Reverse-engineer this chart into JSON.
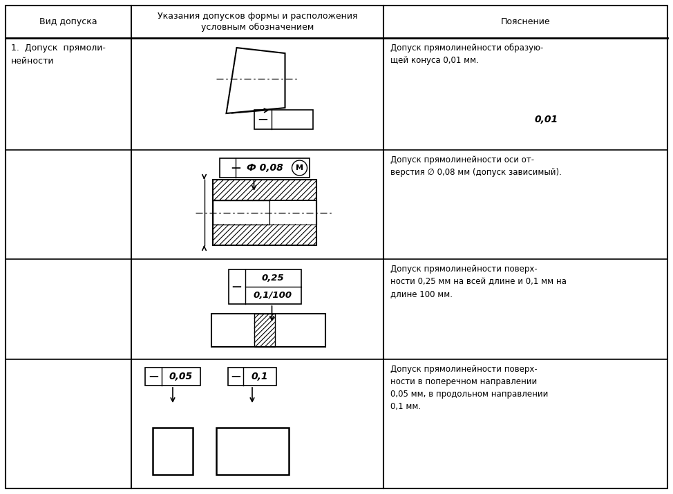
{
  "col1_header": "Вид допуска",
  "col2_header": "Указания допусков формы и расположения\nусловным обозначением",
  "col3_header": "Пояснение",
  "col1_text": "1.  Допуск  прямоли-\nнейности",
  "explanation1": "Допуск прямолинейности образую-\nщей конуса 0,01 мм.",
  "explanation2": "Допуск прямолинейности оси от-\nверстия ∅ 0,08 мм (допуск зависимый).",
  "explanation3": "Допуск прямолинейности поверх-\nности 0,25 мм на всей длине и 0,1 мм на\nдлине 100 мм.",
  "explanation4": "Допуск прямолинейности поверх-\nности в поперечном направлении\n0,05 мм, в продольном направлении\n0,1 мм.",
  "bg_color": "#ffffff",
  "line_color": "#000000",
  "text_color": "#000000",
  "figw": 9.74,
  "figh": 7.15,
  "dpi": 100
}
